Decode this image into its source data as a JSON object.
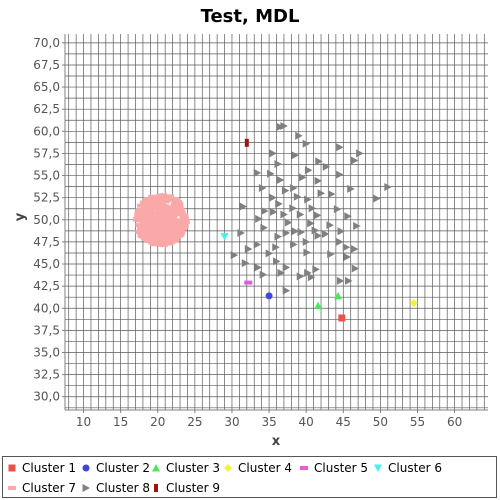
{
  "chart_data": {
    "type": "scatter",
    "title": "Test, MDL",
    "xlabel": "x",
    "ylabel": "y",
    "xlim": [
      7.5,
      64.5
    ],
    "ylim": [
      28.5,
      71
    ],
    "x_ticks": [
      "10",
      "15",
      "20",
      "25",
      "30",
      "35",
      "40",
      "45",
      "50",
      "55",
      "60"
    ],
    "y_ticks": [
      "30,0",
      "32,5",
      "35,0",
      "37,5",
      "40,0",
      "42,5",
      "45,0",
      "47,5",
      "50,0",
      "52,5",
      "55,0",
      "57,5",
      "60,0",
      "62,5",
      "65,0",
      "67,5",
      "70,0"
    ],
    "grid": true,
    "legend_position": "bottom",
    "series": [
      {
        "name": "Cluster 1",
        "color": "#e8524d",
        "marker": "square",
        "points": [
          [
            44.8,
            38.9
          ]
        ]
      },
      {
        "name": "Cluster 2",
        "color": "#3e48d8",
        "marker": "circle",
        "points": [
          [
            35.0,
            41.4
          ]
        ]
      },
      {
        "name": "Cluster 3",
        "color": "#4ce85a",
        "marker": "triangle-up",
        "points": [
          [
            41.6,
            40.3
          ],
          [
            44.3,
            41.4
          ]
        ]
      },
      {
        "name": "Cluster 4",
        "color": "#f2f23a",
        "marker": "diamond",
        "points": [
          [
            54.5,
            40.6
          ]
        ]
      },
      {
        "name": "Cluster 5",
        "color": "#e25ed9",
        "marker": "rect-h",
        "points": [
          [
            32.2,
            42.9
          ]
        ]
      },
      {
        "name": "Cluster 6",
        "color": "#46f0f0",
        "marker": "triangle-down",
        "points": [
          [
            29.0,
            48.1
          ]
        ]
      },
      {
        "name": "Cluster 7",
        "color": "#fba8a8",
        "marker": "dense-blob",
        "center": [
          20.4,
          50.0
        ],
        "radius": [
          3.4,
          2.9
        ],
        "count": 320
      },
      {
        "name": "Cluster 8",
        "color": "#808080",
        "marker": "triangle-right",
        "points": [
          [
            37.0,
            60.6
          ],
          [
            36.5,
            60.5
          ],
          [
            39.0,
            59.5
          ],
          [
            40.0,
            58.6
          ],
          [
            44.5,
            58.2
          ],
          [
            47.2,
            57.5
          ],
          [
            35.5,
            57.5
          ],
          [
            38.5,
            57.3
          ],
          [
            36.2,
            56.3
          ],
          [
            41.7,
            56.6
          ],
          [
            40.3,
            55.6
          ],
          [
            42.7,
            56.0
          ],
          [
            46.5,
            56.7
          ],
          [
            33.4,
            55.3
          ],
          [
            35.2,
            55.2
          ],
          [
            39.5,
            54.8
          ],
          [
            44.5,
            55.1
          ],
          [
            36.5,
            54.5
          ],
          [
            41.6,
            54.4
          ],
          [
            38.3,
            53.6
          ],
          [
            51.0,
            53.7
          ],
          [
            34.1,
            53.6
          ],
          [
            37.2,
            53.3
          ],
          [
            42.0,
            53.0
          ],
          [
            46.0,
            53.5
          ],
          [
            35.5,
            52.5
          ],
          [
            38.8,
            52.6
          ],
          [
            40.2,
            52.3
          ],
          [
            43.4,
            52.9
          ],
          [
            49.5,
            52.4
          ],
          [
            36.3,
            51.8
          ],
          [
            38.2,
            51.3
          ],
          [
            40.8,
            51.3
          ],
          [
            44.2,
            51.2
          ],
          [
            31.5,
            51.5
          ],
          [
            34.4,
            51.0
          ],
          [
            35.6,
            50.9
          ],
          [
            37.0,
            50.6
          ],
          [
            39.2,
            50.6
          ],
          [
            41.5,
            50.5
          ],
          [
            45.6,
            50.4
          ],
          [
            33.6,
            50.1
          ],
          [
            37.6,
            49.7
          ],
          [
            40.6,
            49.6
          ],
          [
            43.2,
            49.4
          ],
          [
            46.8,
            49.3
          ],
          [
            34.3,
            49.1
          ],
          [
            38.5,
            48.7
          ],
          [
            41.2,
            48.8
          ],
          [
            42.6,
            48.4
          ],
          [
            44.7,
            48.7
          ],
          [
            31.2,
            48.5
          ],
          [
            37.3,
            48.5
          ],
          [
            39.3,
            48.6
          ],
          [
            41.6,
            48.2
          ],
          [
            36.2,
            48.1
          ],
          [
            40.0,
            47.5
          ],
          [
            44.5,
            47.5
          ],
          [
            33.4,
            47.2
          ],
          [
            38.3,
            47.2
          ],
          [
            45.4,
            46.9
          ],
          [
            35.9,
            46.9
          ],
          [
            32.2,
            46.7
          ],
          [
            46.5,
            46.7
          ],
          [
            35.0,
            46.2
          ],
          [
            43.3,
            46.1
          ],
          [
            30.3,
            46.0
          ],
          [
            40.1,
            46.3
          ],
          [
            45.5,
            45.8
          ],
          [
            36.0,
            45.3
          ],
          [
            31.8,
            45.1
          ],
          [
            33.5,
            44.6
          ],
          [
            37.3,
            44.6
          ],
          [
            41.3,
            44.4
          ],
          [
            46.6,
            44.5
          ],
          [
            36.6,
            44.0
          ],
          [
            40.2,
            44.0
          ],
          [
            39.2,
            43.6
          ],
          [
            40.7,
            43.5
          ],
          [
            44.6,
            43.1
          ],
          [
            34.2,
            43.8
          ],
          [
            45.7,
            43.1
          ],
          [
            37.3,
            42.0
          ]
        ]
      },
      {
        "name": "Cluster 9",
        "color": "#a31212",
        "marker": "rect-v",
        "points": [
          [
            32.0,
            58.7
          ]
        ]
      }
    ]
  }
}
